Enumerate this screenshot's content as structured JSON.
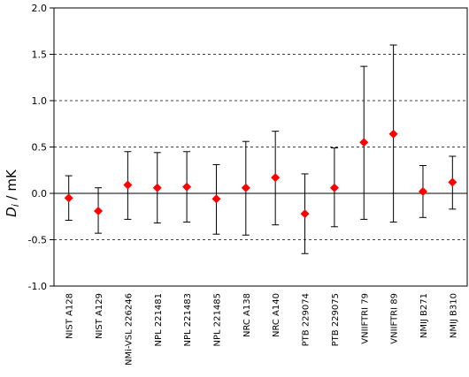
{
  "chart_data": {
    "type": "scatter",
    "title": "",
    "xlabel": "",
    "ylabel": "/ mK",
    "ylabel_symbol": "D",
    "ylabel_subscript": "i",
    "ylim": [
      -1.0,
      2.0
    ],
    "yticks": [
      "-1.0",
      "-0.5",
      "0.0",
      "0.5",
      "1.0",
      "1.5",
      "2.0"
    ],
    "grid": "dashed horizontal at ±0.5, 1.0, 1.5",
    "categories": [
      "NIST A128",
      "NIST A129",
      "NMi-VSL 226246",
      "NPL 221481",
      "NPL 221483",
      "NPL 221485",
      "NRC A138",
      "NRC A140",
      "PTB 229074",
      "PTB 229075",
      "VNIIFTRI 79",
      "VNIIFTRI 89",
      "NMIJ B271",
      "NMIJ B310"
    ],
    "series": [
      {
        "values": [
          -0.05,
          -0.19,
          0.09,
          0.06,
          0.07,
          -0.06,
          0.06,
          0.17,
          -0.22,
          0.06,
          0.55,
          0.64,
          0.02,
          0.12
        ],
        "error_low": [
          -0.29,
          -0.43,
          -0.28,
          -0.32,
          -0.31,
          -0.44,
          -0.45,
          -0.34,
          -0.65,
          -0.36,
          -0.28,
          -0.31,
          -0.26,
          -0.17
        ],
        "error_high": [
          0.19,
          0.06,
          0.45,
          0.44,
          0.45,
          0.31,
          0.56,
          0.67,
          0.21,
          0.49,
          1.37,
          1.6,
          0.3,
          0.4
        ],
        "color": "#ff0000"
      }
    ]
  }
}
